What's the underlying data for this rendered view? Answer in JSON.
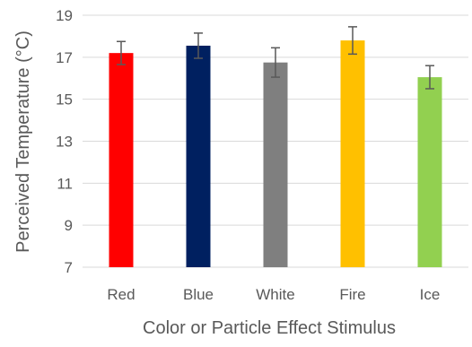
{
  "chart_data": {
    "type": "bar",
    "title": "",
    "xlabel": "Color or Particle Effect Stimulus",
    "ylabel": "Perceived Temperature (°C)",
    "categories": [
      "Red",
      "Blue",
      "White",
      "Fire",
      "Ice"
    ],
    "values": [
      17.2,
      17.55,
      16.75,
      17.8,
      16.05
    ],
    "error": [
      0.55,
      0.6,
      0.7,
      0.65,
      0.55
    ],
    "colors": [
      "#ff0000",
      "#002060",
      "#7f7f7f",
      "#ffc000",
      "#92d050"
    ],
    "ylim": [
      7,
      19
    ],
    "yticks": [
      "7",
      "9",
      "11",
      "13",
      "15",
      "17",
      "19"
    ],
    "grid": true,
    "legend": "none"
  }
}
